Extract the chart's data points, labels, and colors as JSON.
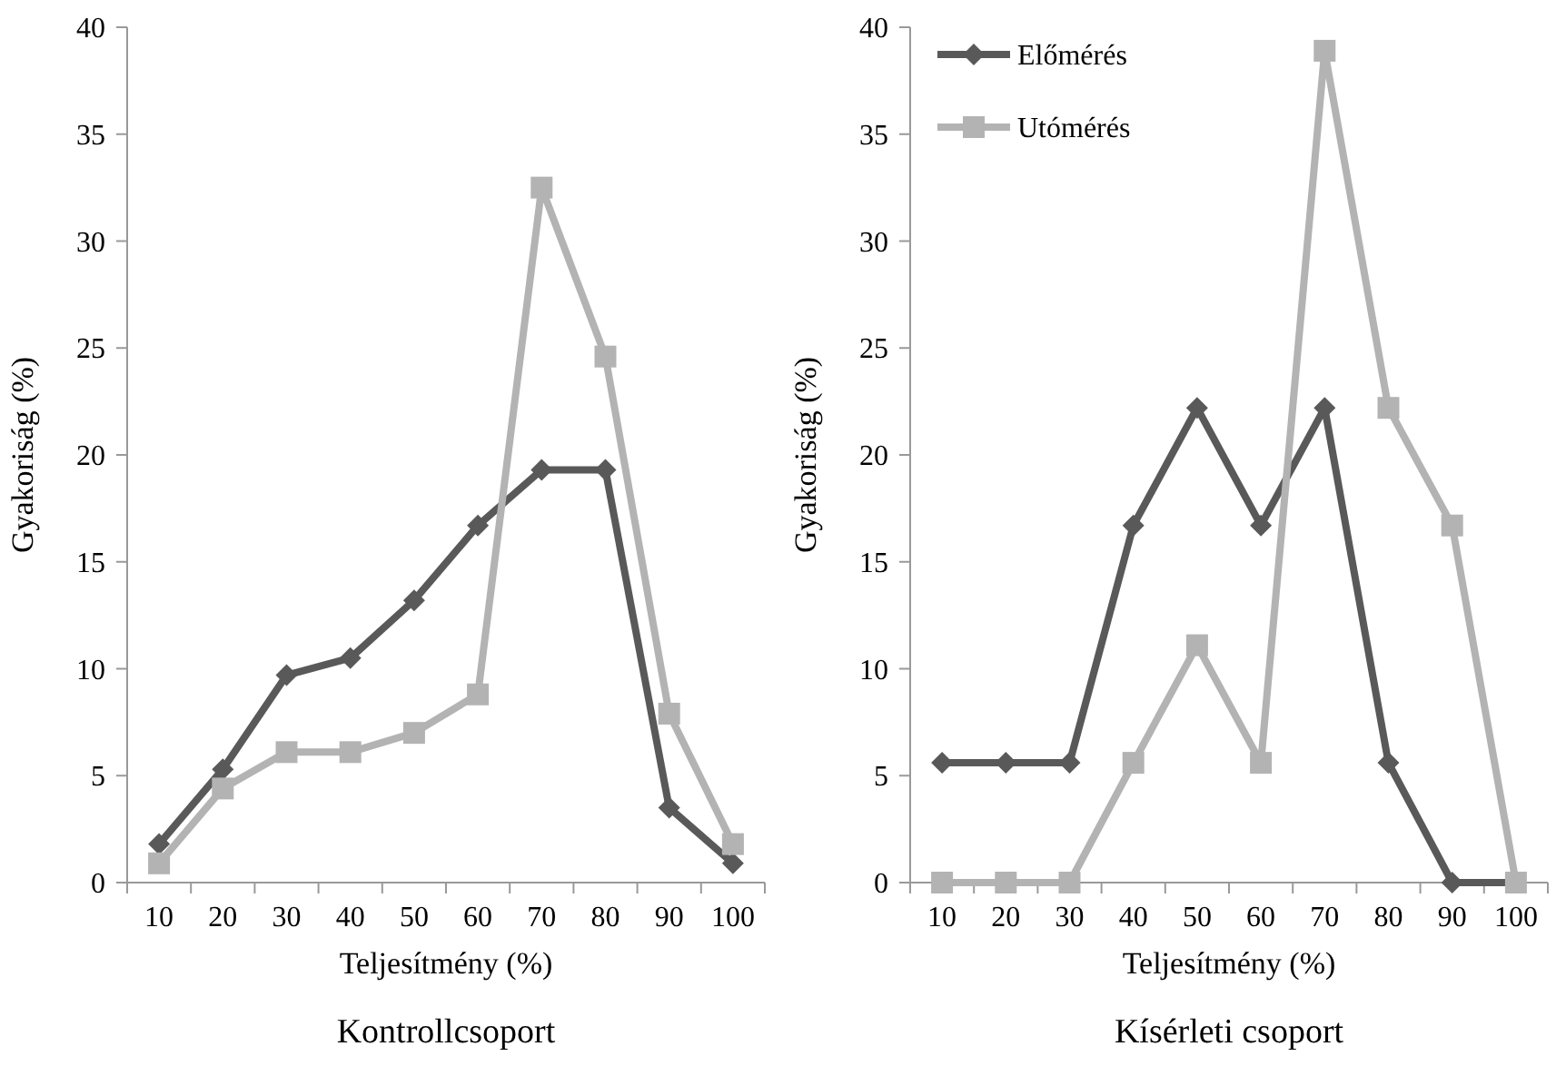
{
  "chart_data": [
    {
      "type": "line",
      "title": "Kontrollcsoport",
      "xlabel": "Teljesítmény (%)",
      "ylabel": "Gyakoriság (%)",
      "categories": [
        "10",
        "20",
        "30",
        "40",
        "50",
        "60",
        "70",
        "80",
        "90",
        "100"
      ],
      "ylim": [
        0,
        40
      ],
      "yticks": [
        0,
        5,
        10,
        15,
        20,
        25,
        30,
        35,
        40
      ],
      "grid": false,
      "legend": false,
      "series": [
        {
          "color": "#595959",
          "marker": "diamond",
          "values": [
            1.8,
            5.3,
            9.7,
            10.5,
            13.2,
            16.7,
            19.3,
            19.3,
            3.5,
            0.9
          ]
        },
        {
          "color": "#b3b3b3",
          "marker": "square",
          "values": [
            0.9,
            4.4,
            6.1,
            6.1,
            7.0,
            8.8,
            32.5,
            24.6,
            7.9,
            1.8
          ]
        }
      ]
    },
    {
      "type": "line",
      "title": "Kísérleti csoport",
      "xlabel": "Teljesítmény (%)",
      "ylabel": "Gyakoriság (%)",
      "categories": [
        "10",
        "20",
        "30",
        "40",
        "50",
        "60",
        "70",
        "80",
        "90",
        "100"
      ],
      "ylim": [
        0,
        40
      ],
      "yticks": [
        0,
        5,
        10,
        15,
        20,
        25,
        30,
        35,
        40
      ],
      "grid": false,
      "legend": "top left",
      "series": [
        {
          "name": "Előmérés",
          "color": "#595959",
          "marker": "diamond",
          "values": [
            5.6,
            5.6,
            5.6,
            16.7,
            22.2,
            16.7,
            22.2,
            5.6,
            0,
            0
          ]
        },
        {
          "name": "Utómérés",
          "color": "#b3b3b3",
          "marker": "square",
          "values": [
            0,
            0,
            0,
            5.6,
            11.1,
            5.6,
            38.9,
            22.2,
            16.7,
            0
          ]
        }
      ]
    }
  ]
}
